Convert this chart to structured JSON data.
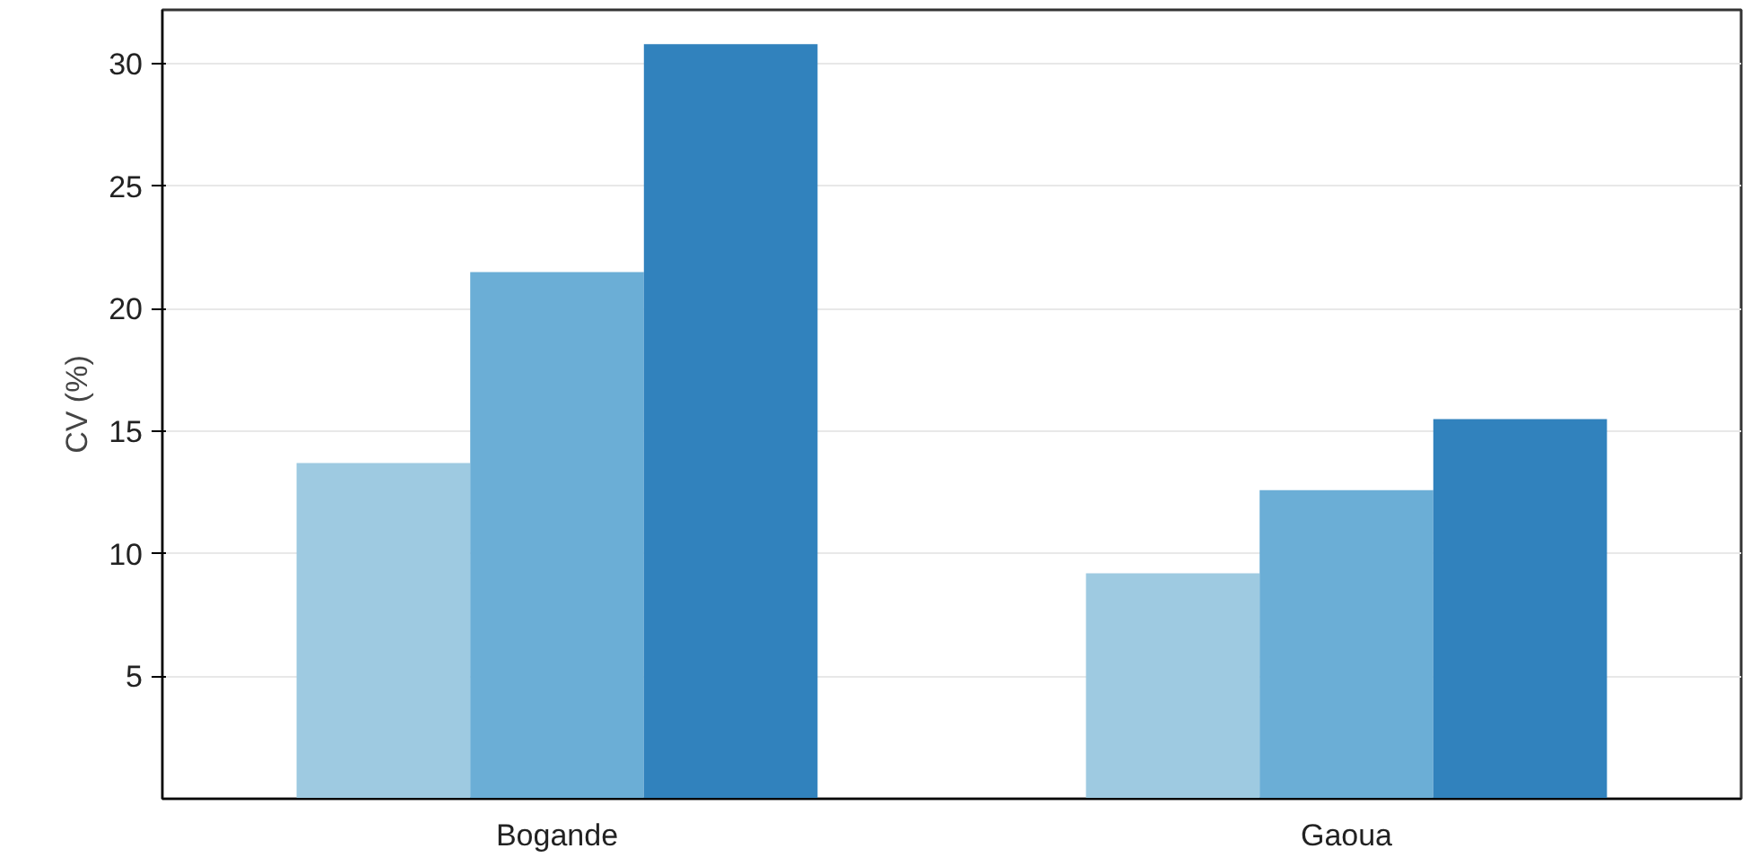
{
  "chart_data": {
    "type": "bar",
    "ylabel": "CV (%)",
    "categories": [
      "Bogande",
      "Gaoua"
    ],
    "series": [
      {
        "color": "#9ecae1",
        "values": [
          13.7,
          9.2
        ]
      },
      {
        "color": "#6baed6",
        "values": [
          21.5,
          12.6
        ]
      },
      {
        "color": "#3182bd",
        "values": [
          30.8,
          15.5
        ]
      }
    ],
    "ylim": [
      0,
      32.2
    ],
    "yticks": [
      5,
      10,
      15,
      20,
      25,
      30
    ],
    "grid": "y"
  }
}
